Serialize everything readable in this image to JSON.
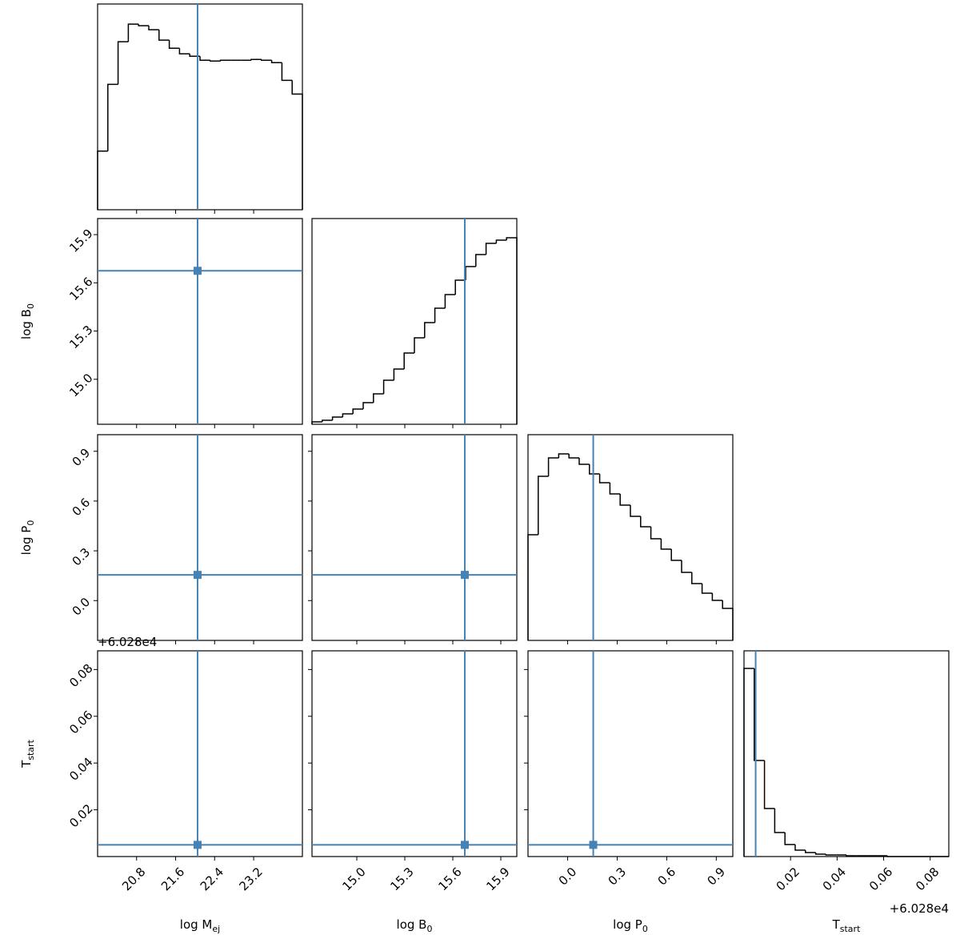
{
  "chart_data": {
    "type": "corner",
    "truth_color": "#4682b4",
    "offset_label": "+6.028e4",
    "parameters": [
      {
        "label": "log M",
        "label_sub": "ej",
        "xlim": [
          20.0,
          24.2
        ],
        "ticks": [
          20.8,
          21.6,
          22.4,
          23.2
        ],
        "truth": 22.05,
        "bins": [
          20.0,
          20.21,
          20.42,
          20.63,
          20.84,
          21.05,
          21.26,
          21.47,
          21.68,
          21.89,
          22.1,
          22.31,
          22.52,
          22.73,
          22.94,
          23.15,
          23.36,
          23.57,
          23.78,
          23.99,
          24.2
        ],
        "counts": [
          73,
          156,
          209,
          231,
          229,
          224,
          211,
          201,
          194,
          191,
          186,
          185,
          186,
          186,
          186,
          187,
          186,
          183,
          161,
          144
        ],
        "hist_ylim": [
          0,
          256
        ]
      },
      {
        "label": "log B",
        "label_sub": "0",
        "xlim": [
          14.72,
          16.0
        ],
        "ticks": [
          {
            "value": 15,
            "label": "15.0"
          },
          15.3,
          15.6,
          15.9
        ],
        "truth": 15.675,
        "bins": [
          14.72,
          14.784,
          14.848,
          14.912,
          14.976,
          15.04,
          15.104,
          15.168,
          15.232,
          15.296,
          15.36,
          15.424,
          15.488,
          15.552,
          15.616,
          15.68,
          15.744,
          15.808,
          15.872,
          15.936,
          16.0
        ],
        "counts": [
          3,
          5,
          9,
          13,
          19,
          27,
          38,
          55,
          69,
          89,
          108,
          127,
          145,
          162,
          180,
          197,
          212,
          226,
          230,
          233
        ],
        "hist_ylim": [
          0,
          257
        ]
      },
      {
        "label": "log P",
        "label_sub": "0",
        "xlim": [
          -0.24,
          1.0
        ],
        "ticks": [
          {
            "value": 0,
            "label": "0.0"
          },
          0.3,
          0.6,
          0.9
        ],
        "truth": 0.155,
        "bins": [
          -0.24,
          -0.178,
          -0.116,
          -0.054,
          0.008,
          0.07,
          0.132,
          0.194,
          0.256,
          0.318,
          0.38,
          0.442,
          0.504,
          0.566,
          0.628,
          0.69,
          0.752,
          0.814,
          0.876,
          0.938,
          1.0
        ],
        "counts": [
          132,
          205,
          228,
          233,
          228,
          220,
          208,
          197,
          183,
          169,
          155,
          142,
          127,
          114,
          100,
          85,
          71,
          59,
          50,
          40
        ],
        "hist_ylim": [
          0,
          257
        ]
      },
      {
        "label": "T",
        "label_sub": "start",
        "xlim": [
          0.0,
          0.088
        ],
        "ticks": [
          0.02,
          0.04,
          0.06,
          0.08
        ],
        "truth": 0.005,
        "bins": [
          0,
          0.0044,
          0.0088,
          0.0132,
          0.0176,
          0.022,
          0.0264,
          0.0308,
          0.0352,
          0.0396,
          0.044,
          0.0484,
          0.0528,
          0.0572,
          0.0616,
          0.066,
          0.0704,
          0.0748,
          0.0792,
          0.0836,
          0.088
        ],
        "counts": [
          235,
          120,
          60,
          30,
          15,
          8,
          5,
          3,
          2,
          2,
          1,
          1,
          1,
          1,
          0,
          0,
          0,
          0,
          0,
          0
        ],
        "hist_ylim": [
          0,
          257
        ]
      }
    ]
  }
}
